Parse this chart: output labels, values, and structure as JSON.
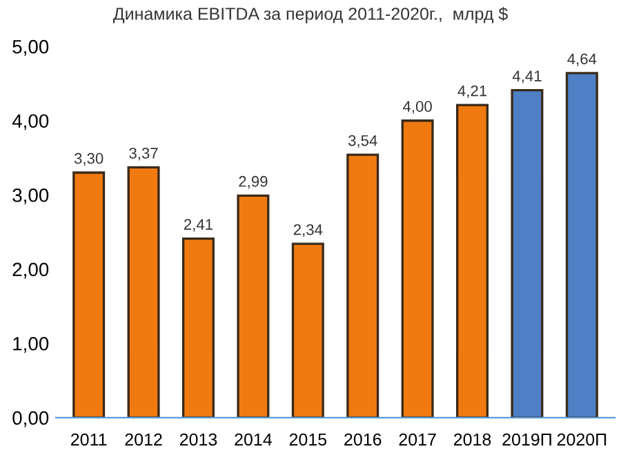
{
  "chart_data": {
    "type": "bar",
    "title": "Динамика EBITDA за период 2011-2020г.,  млрд $",
    "categories": [
      "2011",
      "2012",
      "2013",
      "2014",
      "2015",
      "2016",
      "2017",
      "2018",
      "2019П",
      "2020П"
    ],
    "values": [
      3.3,
      3.37,
      2.41,
      2.99,
      2.34,
      3.54,
      4.0,
      4.21,
      4.41,
      4.64
    ],
    "colors": [
      "#f07a10",
      "#f07a10",
      "#f07a10",
      "#f07a10",
      "#f07a10",
      "#f07a10",
      "#f07a10",
      "#f07a10",
      "#4f7fc4",
      "#4f7fc4"
    ],
    "value_labels": [
      "3,30",
      "3,37",
      "2,41",
      "2,99",
      "2,34",
      "3,54",
      "4,00",
      "4,21",
      "4,41",
      "4,64"
    ],
    "ylim": [
      0,
      5
    ],
    "yticks": [
      {
        "value": 0,
        "label": "0,00"
      },
      {
        "value": 1,
        "label": "1,00"
      },
      {
        "value": 2,
        "label": "2,00"
      },
      {
        "value": 3,
        "label": "3,00"
      },
      {
        "value": 4,
        "label": "4,00"
      },
      {
        "value": 5,
        "label": "5,00"
      }
    ],
    "grid": false,
    "legend": false
  }
}
